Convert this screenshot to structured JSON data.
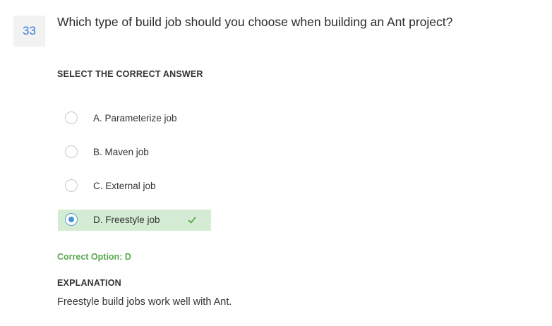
{
  "question": {
    "number": "33",
    "text": "Which type of build job should you choose when building an Ant project?"
  },
  "instruction": "SELECT THE CORRECT ANSWER",
  "options": [
    {
      "label": "A. Parameterize job",
      "selected": false
    },
    {
      "label": "B. Maven job",
      "selected": false
    },
    {
      "label": "C. External job",
      "selected": false
    },
    {
      "label": "D. Freestyle job",
      "selected": true
    }
  ],
  "result": {
    "correct_option": "Correct Option: D"
  },
  "explanation": {
    "heading": "EXPLANATION",
    "text": "Freestyle build jobs work well with Ant."
  },
  "colors": {
    "accent_blue": "#3a7bd5",
    "correct_green": "#5aa84f",
    "selected_bg": "#d4ecd3"
  },
  "icons": {
    "correct_mark": "checkmark-icon"
  }
}
